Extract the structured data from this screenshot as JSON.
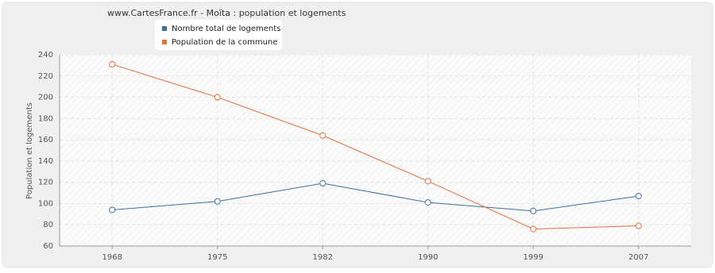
{
  "chart_data": {
    "type": "line",
    "title": "www.CartesFrance.fr - Moïta : population et logements",
    "y_label": "Population et logements",
    "categories": [
      "1968",
      "1975",
      "1982",
      "1990",
      "1999",
      "2007"
    ],
    "series": [
      {
        "name": "Nombre total de logements",
        "color": "#3f6f9f",
        "values": [
          94,
          102,
          119,
          101,
          93,
          107
        ]
      },
      {
        "name": "Population de la commune",
        "color": "#e0703d",
        "values": [
          231,
          200,
          164,
          121,
          76,
          79
        ]
      }
    ],
    "ylim": [
      60,
      240
    ],
    "yticks": [
      60,
      80,
      100,
      120,
      140,
      160,
      180,
      200,
      220,
      240
    ],
    "grid": true
  }
}
